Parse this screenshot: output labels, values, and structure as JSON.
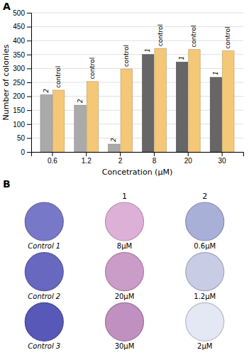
{
  "chart_data": [
    {
      "type": "bar",
      "title": "A",
      "categories": [
        "0.6",
        "1.2",
        "2",
        "8",
        "20",
        "30"
      ],
      "series": [
        {
          "values": [
            205,
            168,
            28,
            350,
            323,
            268
          ],
          "colors": [
            "#aaaaaa",
            "#aaaaaa",
            "#aaaaaa",
            "#666666",
            "#666666",
            "#666666"
          ],
          "labels": [
            "2",
            "2",
            "2",
            "1",
            "1",
            "1"
          ]
        },
        {
          "values": [
            222,
            253,
            298,
            372,
            368,
            363
          ],
          "color": "#f5c878",
          "labels": [
            "control",
            "control",
            "control",
            "control",
            "control",
            "control"
          ]
        }
      ],
      "xlabel": "Concetration (μM)",
      "ylabel": "Number of colonies",
      "ylim": [
        0,
        500
      ],
      "yticks": [
        0,
        50,
        100,
        150,
        200,
        250,
        300,
        350,
        400,
        450,
        500
      ],
      "grid": true
    },
    {
      "type": "image_grid",
      "title": "B",
      "categories": [
        null,
        "1",
        "2"
      ],
      "labels": [
        "Control 1",
        "8μM",
        "0.6μM",
        "Control 2",
        "20μM",
        "1.2μM",
        "Control 3",
        "30μM",
        "2μM"
      ],
      "colors": [
        "#7878c8",
        "#ddb0d8",
        "#a8b0d8",
        "#6868c0",
        "#cc9cc8",
        "#c8cce4",
        "#5858b8",
        "#c090c0",
        "#e4e8f4"
      ]
    }
  ]
}
